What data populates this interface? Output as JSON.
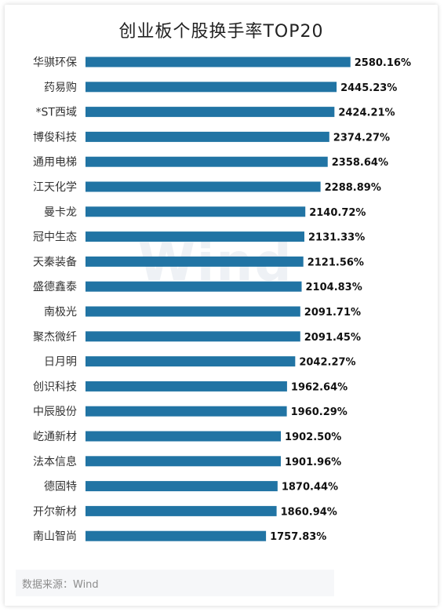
{
  "chart_data": {
    "type": "bar",
    "orientation": "horizontal",
    "title": "创业板个股换手率TOP20",
    "categories": [
      "华骐环保",
      "药易购",
      "*ST西域",
      "博俊科技",
      "通用电梯",
      "江天化学",
      "曼卡龙",
      "冠中生态",
      "天秦装备",
      "盛德鑫泰",
      "南极光",
      "聚杰微纤",
      "日月明",
      "创识科技",
      "中辰股份",
      "屹通新材",
      "法本信息",
      "德固特",
      "开尔新材",
      "南山智尚"
    ],
    "values": [
      2580.16,
      2445.23,
      2424.21,
      2374.27,
      2358.64,
      2288.89,
      2140.72,
      2131.33,
      2121.56,
      2104.83,
      2091.71,
      2091.45,
      2042.27,
      1962.64,
      1960.29,
      1902.5,
      1901.96,
      1870.44,
      1860.94,
      1757.83
    ],
    "value_labels": [
      "2580.16%",
      "2445.23%",
      "2424.21%",
      "2374.27%",
      "2358.64%",
      "2288.89%",
      "2140.72%",
      "2131.33%",
      "2121.56%",
      "2104.83%",
      "2091.71%",
      "2091.45%",
      "2042.27%",
      "1962.64%",
      "1960.29%",
      "1902.50%",
      "1901.96%",
      "1870.44%",
      "1860.94%",
      "1757.83%"
    ],
    "unit": "%",
    "bar_color": "#2174a4",
    "grid": false,
    "legend": "none"
  },
  "watermark": "Wind",
  "source": "数据来源：Wind"
}
